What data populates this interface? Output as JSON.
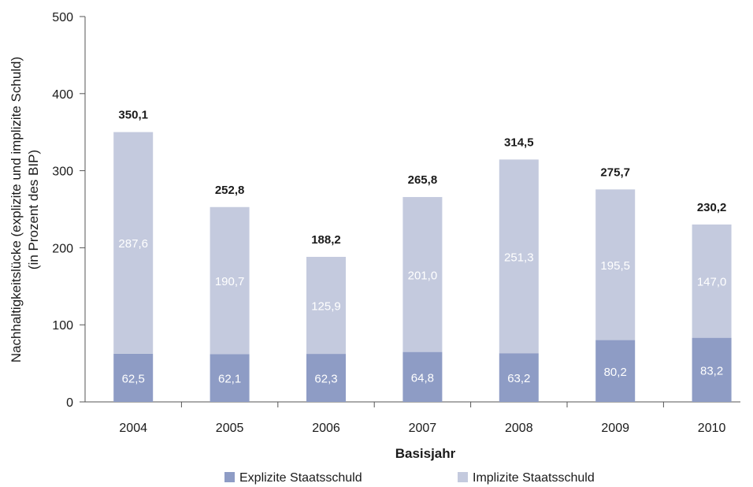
{
  "chart_data": {
    "type": "bar",
    "stacked": true,
    "categories": [
      "2004",
      "2005",
      "2006",
      "2007",
      "2008",
      "2009",
      "2010"
    ],
    "series": [
      {
        "name": "Explizite Staatsschuld",
        "values": [
          62.5,
          62.1,
          62.3,
          64.8,
          63.2,
          80.2,
          83.2
        ],
        "labels": [
          "62,5",
          "62,1",
          "62,3",
          "64,8",
          "63,2",
          "80,2",
          "83,2"
        ],
        "color": "#8e9cc5"
      },
      {
        "name": "Implizite Staatsschuld",
        "values": [
          287.6,
          190.7,
          125.9,
          201.0,
          251.3,
          195.5,
          147.0
        ],
        "labels": [
          "287,6",
          "190,7",
          "125,9",
          "201,0",
          "251,3",
          "195,5",
          "147,0"
        ],
        "color": "#c4cade"
      }
    ],
    "totals": [
      350.1,
      252.8,
      188.2,
      265.8,
      314.5,
      275.7,
      230.2
    ],
    "total_labels": [
      "350,1",
      "252,8",
      "188,2",
      "265,8",
      "314,5",
      "275,7",
      "230,2"
    ],
    "ylim": [
      0,
      500
    ],
    "yticks": [
      0,
      100,
      200,
      300,
      400,
      500
    ],
    "ylabel_line1": "Nachhaltigkeitslücke (explizite und implizite Schuld)",
    "ylabel_line2": "(in Prozent des BIP)",
    "xlabel": "Basisjahr",
    "grid": false,
    "legend_position": "bottom",
    "axis_color": "#555555"
  }
}
